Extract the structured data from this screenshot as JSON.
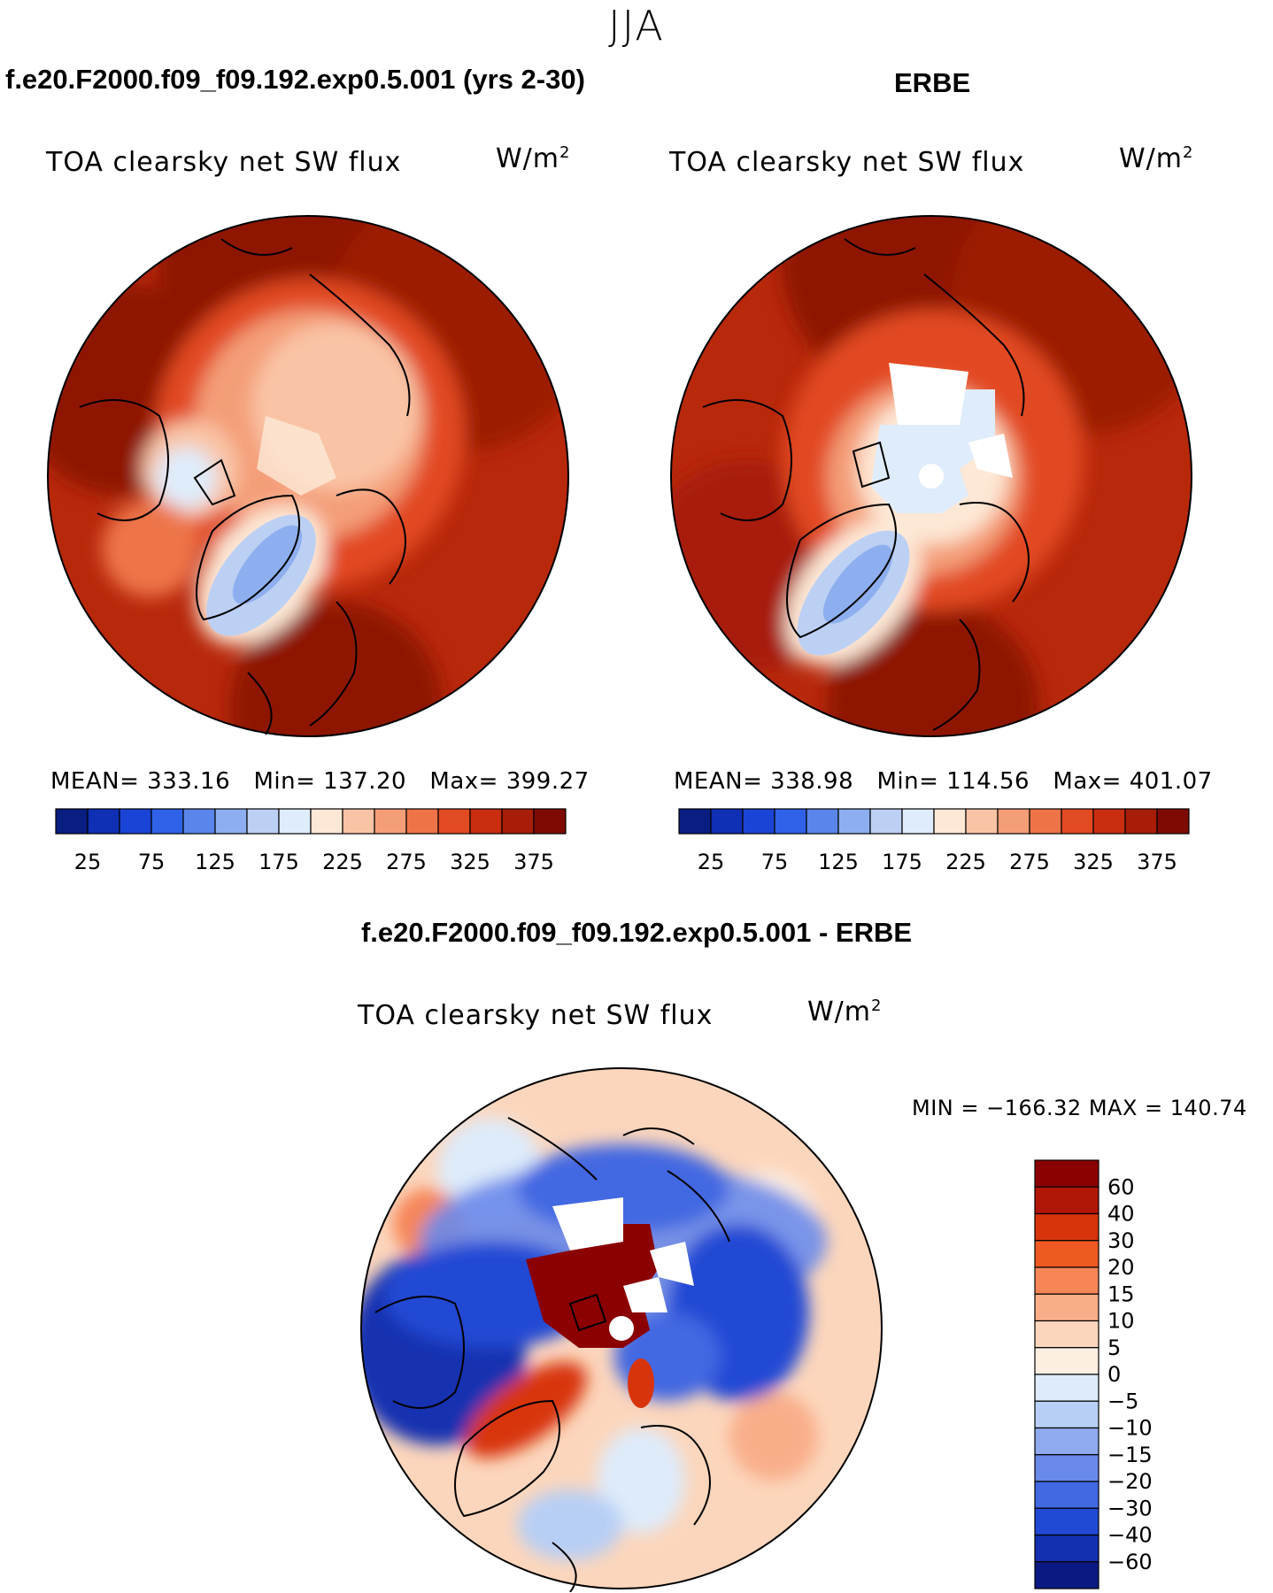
{
  "season": "JJA",
  "panels": [
    {
      "id": "model",
      "header": "f.e20.F2000.f09_f09.192.exp0.5.001 (yrs 2-30)",
      "variable": "TOA clearsky net SW flux",
      "units_base": "W/m",
      "units_exp": "2",
      "stats": {
        "mean_label": "MEAN=",
        "mean": "333.16",
        "min_label": "Min=",
        "min": "137.20",
        "max_label": "Max=",
        "max": "399.27"
      },
      "colorbar": {
        "colors": [
          "#0a1e82",
          "#0f2fb4",
          "#1a44d6",
          "#2f62e8",
          "#5a86ec",
          "#8dafef",
          "#bcd0f4",
          "#dfecfb",
          "#fde8d6",
          "#f9c4a6",
          "#f49e78",
          "#ee7448",
          "#e24a22",
          "#c92e10",
          "#a81d08",
          "#7f0a04"
        ],
        "ticks": [
          "25",
          "75",
          "125",
          "175",
          "225",
          "275",
          "325",
          "375"
        ]
      }
    },
    {
      "id": "obs",
      "header": "ERBE",
      "variable": "TOA clearsky net SW flux",
      "units_base": "W/m",
      "units_exp": "2",
      "stats": {
        "mean_label": "MEAN=",
        "mean": "338.98",
        "min_label": "Min=",
        "min": "114.56",
        "max_label": "Max=",
        "max": "401.07"
      },
      "colorbar": {
        "colors": [
          "#0a1e82",
          "#0f2fb4",
          "#1a44d6",
          "#2f62e8",
          "#5a86ec",
          "#8dafef",
          "#bcd0f4",
          "#dfecfb",
          "#fde8d6",
          "#f9c4a6",
          "#f49e78",
          "#ee7448",
          "#e24a22",
          "#c92e10",
          "#a81d08",
          "#7f0a04"
        ],
        "ticks": [
          "25",
          "75",
          "125",
          "175",
          "225",
          "275",
          "325",
          "375"
        ]
      }
    },
    {
      "id": "diff",
      "header": "f.e20.F2000.f09_f09.192.exp0.5.001 - ERBE",
      "variable": "TOA clearsky net SW flux",
      "units_base": "W/m",
      "units_exp": "2",
      "minmax": "MIN = −166.32 MAX = 140.74",
      "colorbar": {
        "colors": [
          "#8b0000",
          "#b21606",
          "#d8340c",
          "#ee5a22",
          "#f68658",
          "#f9ae8a",
          "#fcd6bc",
          "#fdeee2",
          "#deebfa",
          "#b8cff5",
          "#8faaef",
          "#6a8aea",
          "#4268e2",
          "#2249d4",
          "#1230b0",
          "#0a1a82"
        ],
        "ticks": [
          "60",
          "40",
          "30",
          "20",
          "15",
          "10",
          "5",
          "0",
          "−5",
          "−10",
          "−15",
          "−20",
          "−30",
          "−40",
          "−60"
        ]
      }
    }
  ]
}
